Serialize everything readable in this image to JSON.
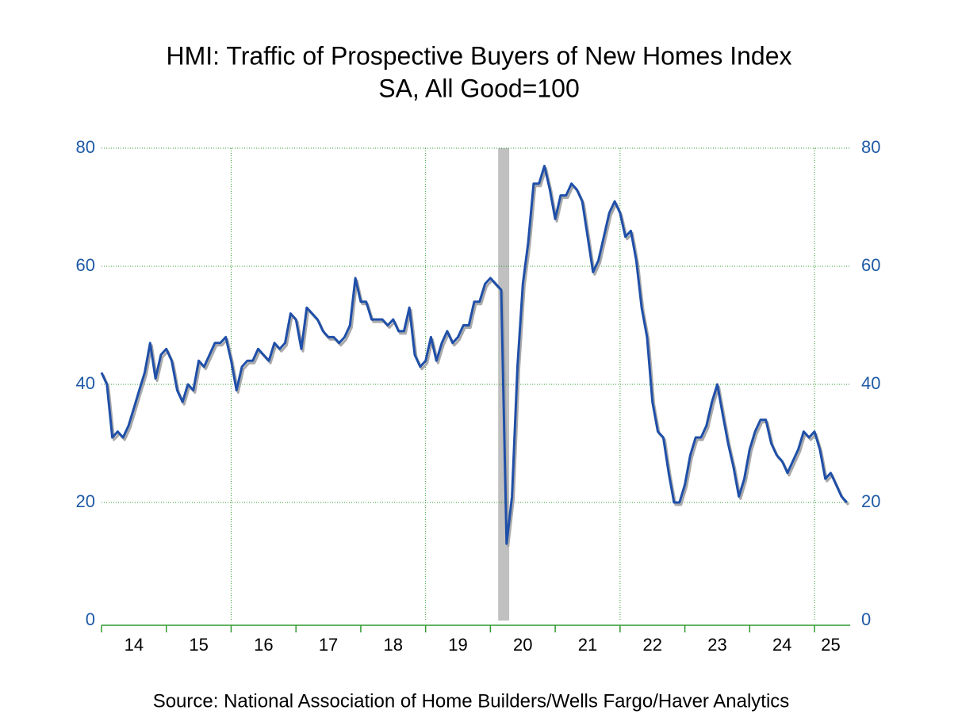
{
  "chart_data": {
    "type": "line",
    "title": "HMI: Traffic of Prospective Buyers of New Homes Index",
    "subtitle": "SA, All Good=100",
    "source": "Source:  National Association of Home Builders/Wells Fargo/Haver Analytics",
    "x": [
      2014,
      2014.083,
      2014.167,
      2014.25,
      2014.333,
      2014.417,
      2014.5,
      2014.583,
      2014.667,
      2014.75,
      2014.833,
      2014.917,
      2015,
      2015.083,
      2015.167,
      2015.25,
      2015.333,
      2015.417,
      2015.5,
      2015.583,
      2015.667,
      2015.75,
      2015.833,
      2015.917,
      2016,
      2016.083,
      2016.167,
      2016.25,
      2016.333,
      2016.417,
      2016.5,
      2016.583,
      2016.667,
      2016.75,
      2016.833,
      2016.917,
      2017,
      2017.083,
      2017.167,
      2017.25,
      2017.333,
      2017.417,
      2017.5,
      2017.583,
      2017.667,
      2017.75,
      2017.833,
      2017.917,
      2018,
      2018.083,
      2018.167,
      2018.25,
      2018.333,
      2018.417,
      2018.5,
      2018.583,
      2018.667,
      2018.75,
      2018.833,
      2018.917,
      2019,
      2019.083,
      2019.167,
      2019.25,
      2019.333,
      2019.417,
      2019.5,
      2019.583,
      2019.667,
      2019.75,
      2019.833,
      2019.917,
      2020,
      2020.083,
      2020.167,
      2020.25,
      2020.333,
      2020.417,
      2020.5,
      2020.583,
      2020.667,
      2020.75,
      2020.833,
      2020.917,
      2021,
      2021.083,
      2021.167,
      2021.25,
      2021.333,
      2021.417,
      2021.5,
      2021.583,
      2021.667,
      2021.75,
      2021.833,
      2021.917,
      2022,
      2022.083,
      2022.167,
      2022.25,
      2022.333,
      2022.417,
      2022.5,
      2022.583,
      2022.667,
      2022.75,
      2022.833,
      2022.917,
      2023,
      2023.083,
      2023.167,
      2023.25,
      2023.333,
      2023.417,
      2023.5,
      2023.583,
      2023.667,
      2023.75,
      2023.833,
      2023.917,
      2024,
      2024.083,
      2024.167,
      2024.25,
      2024.333,
      2024.417,
      2024.5,
      2024.583,
      2024.667,
      2024.75,
      2024.833,
      2024.917,
      2025,
      2025.083,
      2025.167,
      2025.25,
      2025.333,
      2025.417,
      2025.5
    ],
    "series": [
      {
        "color": "#1f4fa8",
        "values": [
          42,
          40,
          31,
          32,
          31,
          33,
          36,
          39,
          42,
          47,
          41,
          45,
          46,
          44,
          39,
          37,
          40,
          39,
          44,
          43,
          45,
          47,
          47,
          48,
          44,
          39,
          43,
          44,
          44,
          46,
          45,
          44,
          47,
          46,
          47,
          52,
          51,
          46,
          53,
          52,
          51,
          49,
          48,
          48,
          47,
          48,
          50,
          58,
          54,
          54,
          51,
          51,
          51,
          50,
          51,
          49,
          49,
          53,
          45,
          43,
          44,
          48,
          44,
          47,
          49,
          47,
          48,
          50,
          50,
          54,
          54,
          57,
          58,
          57,
          56,
          13,
          21,
          43,
          57,
          64,
          74,
          74,
          77,
          73,
          68,
          72,
          72,
          74,
          73,
          71,
          65,
          59,
          61,
          65,
          69,
          71,
          69,
          65,
          66,
          61,
          53,
          48,
          37,
          32,
          31,
          25,
          20,
          20,
          23,
          28,
          31,
          31,
          33,
          37,
          40,
          35,
          30,
          26,
          21,
          24,
          29,
          32,
          34,
          34,
          30,
          28,
          27,
          25,
          27,
          29,
          32,
          31,
          32,
          29,
          24,
          25,
          23,
          21,
          20
        ]
      }
    ],
    "xlim": [
      2014,
      2025.55
    ],
    "xticks": [
      {
        "value": 2014,
        "label": "14"
      },
      {
        "value": 2015,
        "label": "15"
      },
      {
        "value": 2016,
        "label": "16"
      },
      {
        "value": 2017,
        "label": "17"
      },
      {
        "value": 2018,
        "label": "18"
      },
      {
        "value": 2019,
        "label": "19"
      },
      {
        "value": 2020,
        "label": "20"
      },
      {
        "value": 2021,
        "label": "21"
      },
      {
        "value": 2022,
        "label": "22"
      },
      {
        "value": 2023,
        "label": "23"
      },
      {
        "value": 2024,
        "label": "24"
      },
      {
        "value": 2025,
        "label": "25"
      }
    ],
    "xgrid": [
      2016,
      2019,
      2022,
      2025
    ],
    "ylim": [
      0,
      80
    ],
    "yticks": [
      0,
      20,
      40,
      60,
      80
    ],
    "y2lim": [
      0,
      80
    ],
    "y2ticks": [
      0,
      20,
      40,
      60,
      80
    ],
    "grid": true,
    "shading": [
      {
        "start": 2020.12,
        "end": 2020.29,
        "color": "#c0c0c0"
      }
    ]
  }
}
